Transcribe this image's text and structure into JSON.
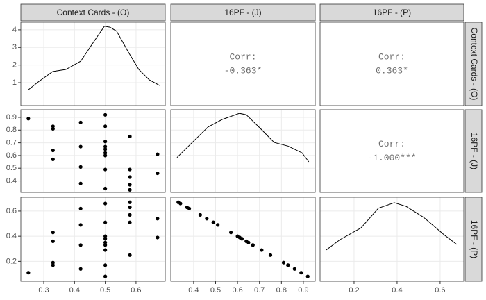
{
  "chart_data": {
    "type": "scatter-matrix",
    "series": [
      {
        "name": "Context Cards - (O)",
        "values": [
          0.25,
          0.33,
          0.33,
          0.33,
          0.33,
          0.42,
          0.42,
          0.42,
          0.42,
          0.5,
          0.5,
          0.5,
          0.5,
          0.5,
          0.5,
          0.5,
          0.5,
          0.5,
          0.58,
          0.58,
          0.58,
          0.58,
          0.58,
          0.67,
          0.67
        ]
      },
      {
        "name": "16PF - (J)",
        "values": [
          0.89,
          0.83,
          0.81,
          0.64,
          0.57,
          0.86,
          0.67,
          0.51,
          0.38,
          0.92,
          0.83,
          0.71,
          0.67,
          0.65,
          0.62,
          0.6,
          0.49,
          0.34,
          0.75,
          0.49,
          0.43,
          0.37,
          0.33,
          0.61,
          0.46
        ]
      },
      {
        "name": "16PF - (P)",
        "values": [
          0.11,
          0.17,
          0.19,
          0.36,
          0.43,
          0.14,
          0.33,
          0.49,
          0.62,
          0.08,
          0.17,
          0.29,
          0.33,
          0.35,
          0.38,
          0.4,
          0.51,
          0.66,
          0.25,
          0.51,
          0.57,
          0.63,
          0.67,
          0.39,
          0.54
        ]
      }
    ],
    "xaxes": [
      {
        "xlim": [
          0.2255,
          0.695
        ],
        "xticks": [
          0.3,
          0.4,
          0.5,
          0.6
        ]
      },
      {
        "xlim": [
          0.296,
          0.954
        ],
        "xticks": [
          0.4,
          0.5,
          0.6,
          0.7,
          0.8,
          0.9
        ]
      },
      {
        "xlim": [
          0.042,
          0.71
        ],
        "xticks": [
          0.2,
          0.4,
          0.6
        ]
      }
    ],
    "yaxes": [
      {
        "ylim": [
          -0.3,
          4.43
        ],
        "yticks": [
          1,
          2,
          3,
          4
        ]
      },
      {
        "ylim": [
          0.31,
          0.96
        ],
        "yticks": [
          0.4,
          0.5,
          0.6,
          0.7,
          0.8,
          0.9
        ]
      },
      {
        "ylim": [
          0.042,
          0.71
        ],
        "yticks": [
          0.2,
          0.4,
          0.6
        ]
      }
    ],
    "densities": [
      {
        "x": [
          0.248,
          0.282,
          0.329,
          0.372,
          0.42,
          0.463,
          0.497,
          0.515,
          0.537,
          0.575,
          0.609,
          0.643,
          0.677
        ],
        "values": [
          0.57,
          1.04,
          1.63,
          1.75,
          2.22,
          3.33,
          4.2,
          4.15,
          3.92,
          2.74,
          1.75,
          1.16,
          0.84
        ],
        "ylim": [
          -0.3,
          4.43
        ]
      },
      {
        "x": [
          0.324,
          0.387,
          0.466,
          0.53,
          0.609,
          0.64,
          0.704,
          0.767,
          0.83,
          0.894,
          0.925
        ],
        "values": [
          0.97,
          1.35,
          1.82,
          2.03,
          2.2,
          2.16,
          1.78,
          1.39,
          1.29,
          1.1,
          0.85
        ],
        "ylim": [
          0,
          2.3
        ]
      },
      {
        "x": [
          0.071,
          0.135,
          0.232,
          0.313,
          0.387,
          0.442,
          0.523,
          0.619,
          0.677
        ],
        "values": [
          0.86,
          1.14,
          1.46,
          2.0,
          2.15,
          2.05,
          1.75,
          1.27,
          1.01
        ],
        "ylim": [
          0,
          2.3
        ]
      }
    ],
    "correlations": [
      {
        "label": "Corr:",
        "value": -0.363,
        "value_label": "-0.363*"
      },
      {
        "label": "Corr:",
        "value": 0.363,
        "value_label": "0.363*"
      },
      {
        "label": "Corr:",
        "value": -1.0,
        "value_label": "-1.000***"
      }
    ],
    "grid": true
  }
}
